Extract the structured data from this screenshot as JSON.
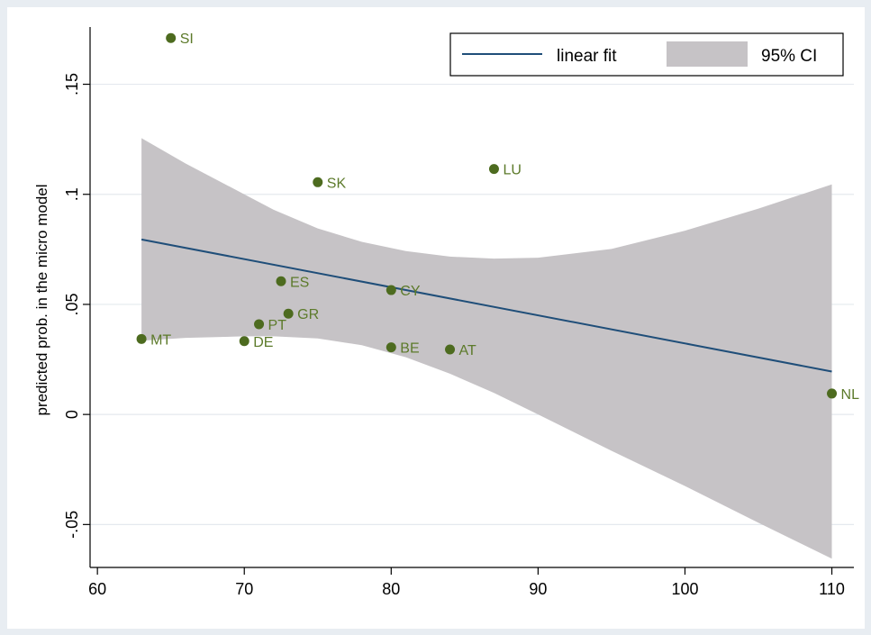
{
  "chart_data": {
    "type": "scatter",
    "ylabel": "predicted prob. in the micro model",
    "xlabel": "",
    "xlim": [
      59.5,
      111.5
    ],
    "ylim": [
      -0.0695,
      0.176
    ],
    "x_ticks": [
      60,
      70,
      80,
      90,
      100,
      110
    ],
    "y_ticks": [
      -0.05,
      0,
      0.05,
      0.1,
      0.15
    ],
    "y_tick_labels": [
      "-.05",
      "0",
      ".05",
      ".1",
      ".15"
    ],
    "grid": true,
    "legend": {
      "placement": "top-right",
      "entries": [
        "linear fit",
        "95% CI"
      ]
    },
    "points": [
      {
        "label": "SI",
        "x": 65,
        "y": 0.171
      },
      {
        "label": "LU",
        "x": 87,
        "y": 0.1115
      },
      {
        "label": "SK",
        "x": 75,
        "y": 0.1055
      },
      {
        "label": "ES",
        "x": 72.5,
        "y": 0.0605
      },
      {
        "label": "CY",
        "x": 80,
        "y": 0.0565
      },
      {
        "label": "GR",
        "x": 73,
        "y": 0.0458
      },
      {
        "label": "PT",
        "x": 71,
        "y": 0.041
      },
      {
        "label": "MT",
        "x": 63,
        "y": 0.0343
      },
      {
        "label": "DE",
        "x": 70,
        "y": 0.0333
      },
      {
        "label": "BE",
        "x": 80,
        "y": 0.0305
      },
      {
        "label": "AT",
        "x": 84,
        "y": 0.0295
      },
      {
        "label": "NL",
        "x": 110,
        "y": 0.0095
      }
    ],
    "linear_fit": {
      "x": [
        63,
        110
      ],
      "y": [
        0.0795,
        0.0195
      ]
    },
    "ci_95": {
      "x": [
        63,
        66,
        70,
        72,
        75,
        78,
        81,
        84,
        87,
        90,
        95,
        100,
        105,
        110
      ],
      "upper": [
        0.1255,
        0.114,
        0.1,
        0.093,
        0.0845,
        0.0784,
        0.0742,
        0.0717,
        0.0708,
        0.0712,
        0.0752,
        0.0835,
        0.0935,
        0.1045
      ],
      "lower": [
        0.0335,
        0.0348,
        0.0355,
        0.0355,
        0.0345,
        0.0315,
        0.026,
        0.0185,
        0.0098,
        0.0,
        -0.0165,
        -0.0325,
        -0.0492,
        -0.0655
      ]
    },
    "colors": {
      "points": "#4d6b1f",
      "labels": "#5c7a2a",
      "fit_line": "#1f4e79",
      "ci_fill": "#c6c3c6",
      "grid": "#e4e9ee",
      "background": "#e8edf2",
      "plot_background": "#ffffff"
    }
  }
}
